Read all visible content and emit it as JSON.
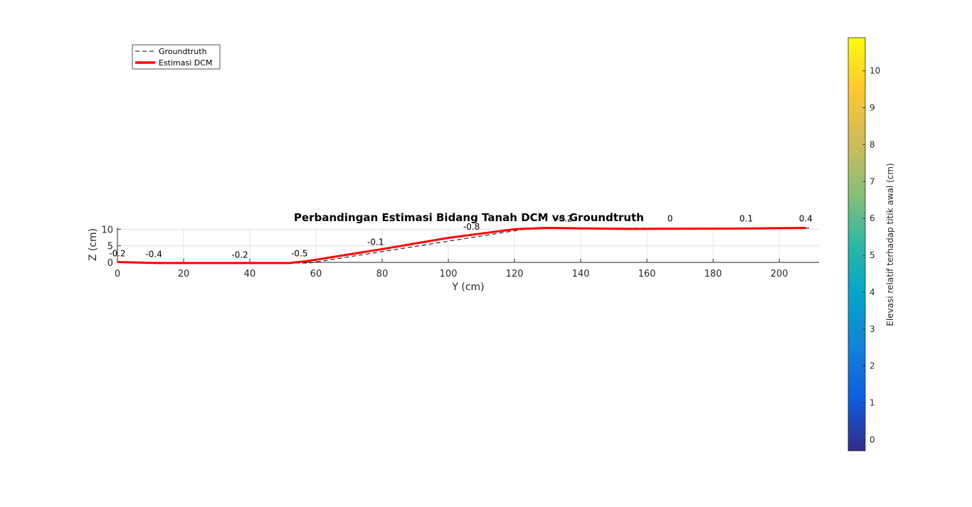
{
  "chart_data": {
    "type": "line",
    "title": "Perbandingan Estimasi Bidang Tanah DCM vs Groundtruth",
    "xlabel": "Y (cm)",
    "ylabel": "Z (cm)",
    "xlim": [
      0,
      212
    ],
    "ylim": [
      0,
      10.5
    ],
    "xticks": [
      "0",
      "20",
      "40",
      "60",
      "80",
      "100",
      "120",
      "140",
      "160",
      "180",
      "200"
    ],
    "yticks": [
      "0",
      "5",
      "10"
    ],
    "grid": true,
    "legend_position": "top-left",
    "series": [
      {
        "name": "Groundtruth",
        "style": "dashed",
        "color": "#000000",
        "x": [
          0,
          12,
          52,
          58,
          125,
          210
        ],
        "y": [
          0.2,
          -0.2,
          -0.2,
          -0.2,
          10.3,
          10.3
        ]
      },
      {
        "name": "Estimasi DCM",
        "style": "solid",
        "color": "#ff0000",
        "x": [
          0,
          12,
          52,
          58,
          80,
          100,
          120,
          130,
          152,
          188,
          208
        ],
        "y": [
          0.1,
          -0.2,
          -0.2,
          0.5,
          4.0,
          7.4,
          10.0,
          10.4,
          10.1,
          10.2,
          10.4
        ]
      }
    ],
    "annotations": [
      {
        "text": "-0.2",
        "x": 0,
        "y": 1.8
      },
      {
        "text": "-0.4",
        "x": 11,
        "y": 1.6
      },
      {
        "text": "-0.2",
        "x": 37,
        "y": 1.4
      },
      {
        "text": "-0.5",
        "x": 55,
        "y": 1.8
      },
      {
        "text": "-0.1",
        "x": 78,
        "y": 5.2
      },
      {
        "text": "-0.8",
        "x": 107,
        "y": 9.9
      },
      {
        "text": "-0.2",
        "x": 135,
        "y": 12.3
      },
      {
        "text": "0",
        "x": 167,
        "y": 12.3
      },
      {
        "text": "0.1",
        "x": 190,
        "y": 12.3
      },
      {
        "text": "0.4",
        "x": 208,
        "y": 12.3
      }
    ],
    "colorbar": {
      "label": "Elevasi relatif terhadap titik awal (cm)",
      "range": [
        -0.3,
        10.9
      ],
      "ticks": [
        "0",
        "1",
        "2",
        "3",
        "4",
        "5",
        "6",
        "7",
        "8",
        "9",
        "10"
      ],
      "colormap": "parula"
    }
  }
}
